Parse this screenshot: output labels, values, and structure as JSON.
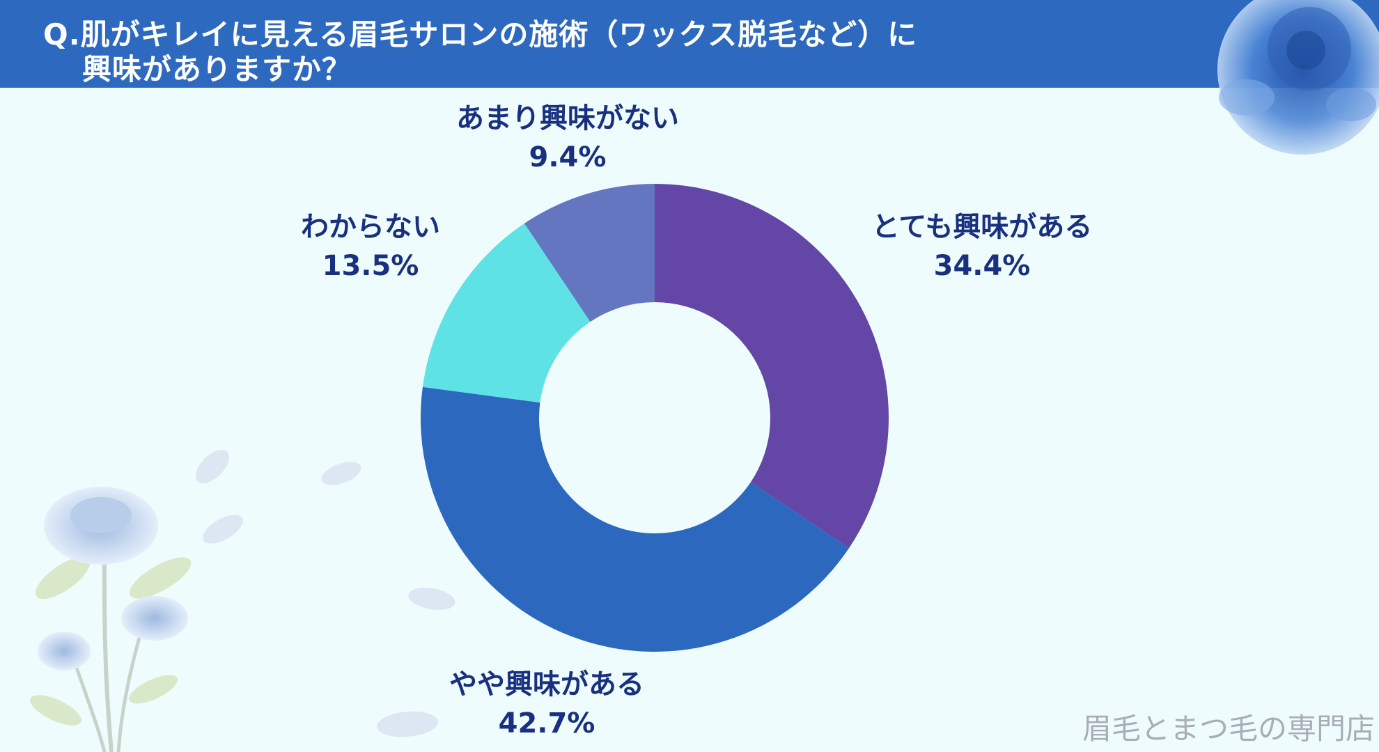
{
  "title": {
    "line1": "Q.肌がキレイに見える眉毛サロンの施術（ワックス脱毛など）に",
    "line2": "興味がありますか？"
  },
  "watermark": "眉毛とまつ毛の専門店",
  "colors": {
    "header": "#2d6abf",
    "background": "#effcfd",
    "label_text": "#18307e"
  },
  "chart_data": {
    "type": "pie",
    "style": "donut",
    "title": "",
    "legend": "none",
    "slices": [
      {
        "label": "とても興味がある",
        "percent_text": "34.4%",
        "value": 34.4,
        "color": "#6346a6"
      },
      {
        "label": "やや興味がある",
        "percent_text": "42.7%",
        "value": 42.7,
        "color": "#2d68bf"
      },
      {
        "label": "わからない",
        "percent_text": "13.5%",
        "value": 13.5,
        "color": "#5ee2e6"
      },
      {
        "label": "あまり興味がない",
        "percent_text": "9.4%",
        "value": 9.4,
        "color": "#6476c0"
      }
    ]
  }
}
